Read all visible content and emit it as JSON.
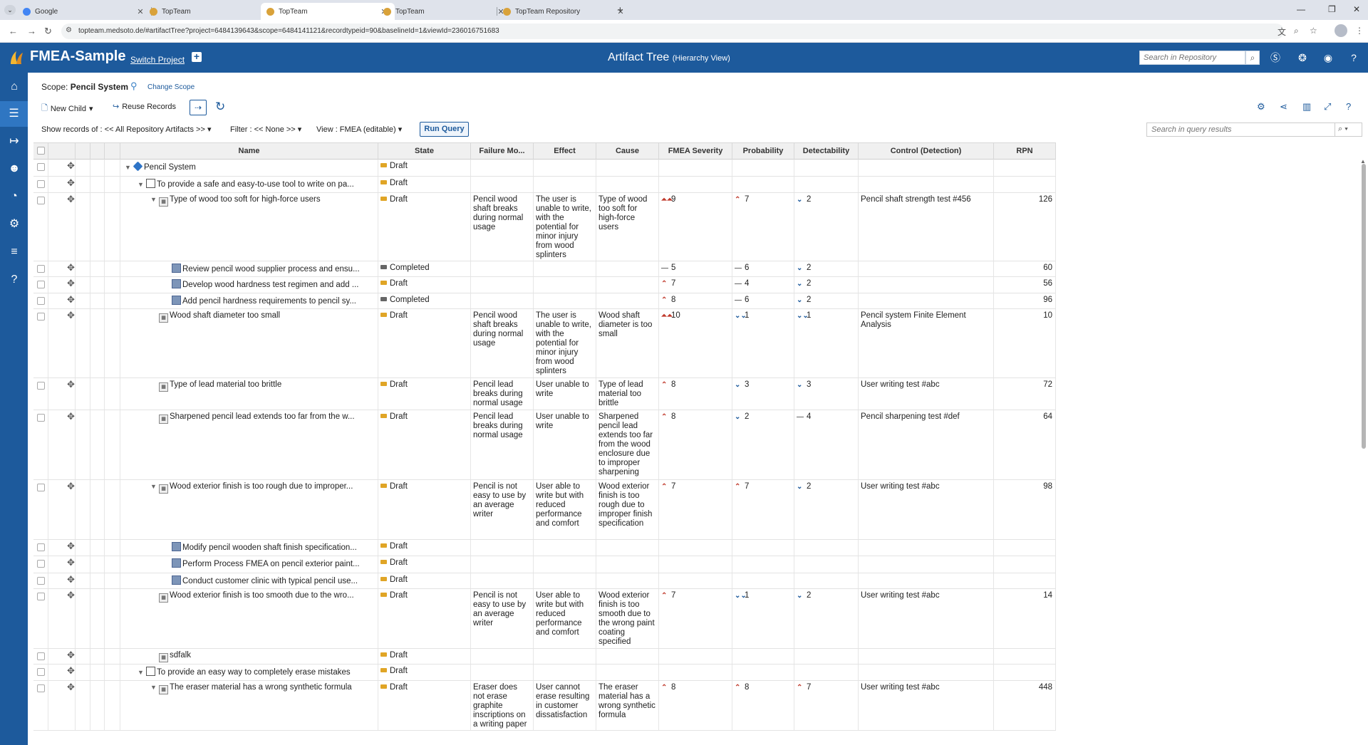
{
  "browser": {
    "tabs": [
      {
        "title": "Google",
        "active": false
      },
      {
        "title": "TopTeam",
        "active": false
      },
      {
        "title": "TopTeam",
        "active": true
      },
      {
        "title": "TopTeam",
        "active": false
      },
      {
        "title": "TopTeam Repository",
        "active": false
      }
    ],
    "url": "topteam.medsoto.de/#artifactTree?project=6484139643&scope=6484141121&recordtypeid=90&baselineId=1&viewId=236016751683"
  },
  "header": {
    "project_name": "FMEA-Sample",
    "switch_project": "Switch Project",
    "title": "Artifact Tree",
    "subtitle": "(Hierarchy View)",
    "search_placeholder": "Search in Repository"
  },
  "scope": {
    "label": "Scope:",
    "value": "Pencil System",
    "change": "Change Scope"
  },
  "toolbar": {
    "new_child": "New Child",
    "reuse_records": "Reuse Records"
  },
  "filters": {
    "show_records": "Show records of :",
    "show_records_value": "<< All Repository Artifacts >>",
    "filter": "Filter : << None >>",
    "view": "View : FMEA (editable)",
    "run_query": "Run Query",
    "query_search_placeholder": "Search in query results"
  },
  "columns": [
    "Name",
    "State",
    "Failure Mo...",
    "Effect",
    "Cause",
    "FMEA Severity",
    "Probability",
    "Detectability",
    "Control (Detection)",
    "RPN"
  ],
  "colors": {
    "brand": "#1d5a9c",
    "draft": "#e0a526",
    "completed": "#666666"
  },
  "rows": [
    {
      "name": "Pencil System",
      "type": "sys",
      "toggle": "▼",
      "level": 0,
      "state": "Draft"
    },
    {
      "name": "To provide a safe and easy-to-use tool to write on pa...",
      "type": "req",
      "toggle": "▼",
      "level": 1,
      "state": "Draft"
    },
    {
      "name": "Type of wood too soft for high-force users",
      "type": "fm",
      "toggle": "▼",
      "level": 2,
      "state": "Draft",
      "failure": "Pencil wood shaft breaks during normal usage",
      "effect": "The user is unable to write, with the potential for minor injury from wood splinters",
      "cause": "Type of wood too soft for high-force users",
      "sev": "9",
      "sev_l": "hh",
      "prob": "7",
      "prob_l": "h",
      "det": "2",
      "det_l": "l",
      "control": "Pencil shaft strength test #456",
      "rpn": "126"
    },
    {
      "name": "Review pencil wood supplier process and ensu...",
      "type": "act",
      "toggle": "",
      "level": 3,
      "state": "Completed",
      "sev": "5",
      "sev_l": "m",
      "prob": "6",
      "prob_l": "m",
      "det": "2",
      "det_l": "l",
      "rpn": "60"
    },
    {
      "name": "Develop wood hardness test regimen and add ...",
      "type": "act",
      "toggle": "",
      "level": 3,
      "state": "Draft",
      "sev": "7",
      "sev_l": "h",
      "prob": "4",
      "prob_l": "m",
      "det": "2",
      "det_l": "l",
      "rpn": "56"
    },
    {
      "name": "Add pencil hardness requirements to pencil sy...",
      "type": "act",
      "toggle": "",
      "level": 3,
      "state": "Completed",
      "sev": "8",
      "sev_l": "h",
      "prob": "6",
      "prob_l": "m",
      "det": "2",
      "det_l": "l",
      "rpn": "96"
    },
    {
      "name": "Wood shaft diameter too small",
      "type": "fm",
      "toggle": "",
      "level": 2,
      "state": "Draft",
      "failure": "Pencil wood shaft breaks during normal usage",
      "effect": "The user is unable to write, with the potential for minor injury from wood splinters",
      "cause": "Wood shaft diameter is too small",
      "sev": "10",
      "sev_l": "hh",
      "prob": "1",
      "prob_l": "ll",
      "det": "1",
      "det_l": "ll",
      "control": "Pencil system Finite Element Analysis",
      "rpn": "10"
    },
    {
      "name": "Type of lead material too brittle",
      "type": "fm",
      "toggle": "",
      "level": 2,
      "state": "Draft",
      "failure": "Pencil lead breaks during normal usage",
      "effect": "User unable to write",
      "cause": "Type of lead material too brittle",
      "sev": "8",
      "sev_l": "h",
      "prob": "3",
      "prob_l": "l",
      "det": "3",
      "det_l": "l",
      "control": "User writing test #abc",
      "rpn": "72"
    },
    {
      "name": "Sharpened pencil lead extends too far from the w...",
      "type": "fm",
      "toggle": "",
      "level": 2,
      "state": "Draft",
      "failure": "Pencil lead breaks during normal usage",
      "effect": "User unable to write",
      "cause": "Sharpened pencil lead extends too far from the wood enclosure due to improper sharpening",
      "sev": "8",
      "sev_l": "h",
      "prob": "2",
      "prob_l": "l",
      "det": "4",
      "det_l": "m",
      "control": "Pencil sharpening test #def",
      "rpn": "64"
    },
    {
      "name": "Wood exterior finish is too rough due to improper...",
      "type": "fm",
      "toggle": "▼",
      "level": 2,
      "state": "Draft",
      "failure": "Pencil is not easy to use by an average writer",
      "effect": "User able to write but with reduced performance and comfort",
      "cause": "Wood exterior finish is too rough due to improper finish specification",
      "sev": "7",
      "sev_l": "h",
      "prob": "7",
      "prob_l": "h",
      "det": "2",
      "det_l": "l",
      "control": "User writing test #abc",
      "rpn": "98"
    },
    {
      "name": "Modify pencil wooden shaft finish specification...",
      "type": "act",
      "toggle": "",
      "level": 3,
      "state": "Draft"
    },
    {
      "name": "Perform Process FMEA on pencil exterior paint...",
      "type": "act",
      "toggle": "",
      "level": 3,
      "state": "Draft"
    },
    {
      "name": "Conduct customer clinic with typical pencil use...",
      "type": "act",
      "toggle": "",
      "level": 3,
      "state": "Draft"
    },
    {
      "name": "Wood exterior finish is too smooth due to the wro...",
      "type": "fm",
      "toggle": "",
      "level": 2,
      "state": "Draft",
      "failure": "Pencil is not easy to use by an average writer",
      "effect": "User able to write but with reduced performance and comfort",
      "cause": "Wood exterior finish is too smooth due to the wrong paint coating specified",
      "sev": "7",
      "sev_l": "h",
      "prob": "1",
      "prob_l": "ll",
      "det": "2",
      "det_l": "l",
      "control": "User writing test #abc",
      "rpn": "14"
    },
    {
      "name": "sdfalk",
      "type": "fm",
      "toggle": "",
      "level": 2,
      "state": "Draft"
    },
    {
      "name": "To provide an easy way to completely erase mistakes",
      "type": "req",
      "toggle": "▼",
      "level": 1,
      "state": "Draft"
    },
    {
      "name": "The eraser material has a wrong synthetic formula",
      "type": "fm",
      "toggle": "▼",
      "level": 2,
      "state": "Draft",
      "failure": "Eraser does not erase graphite inscriptions on a writing paper",
      "effect": "User cannot erase resulting in customer dissatisfaction",
      "cause": "The eraser material has a wrong synthetic formula",
      "sev": "8",
      "sev_l": "h",
      "prob": "8",
      "prob_l": "h",
      "det": "7",
      "det_l": "h",
      "control": "User writing test #abc",
      "rpn": "448"
    }
  ]
}
